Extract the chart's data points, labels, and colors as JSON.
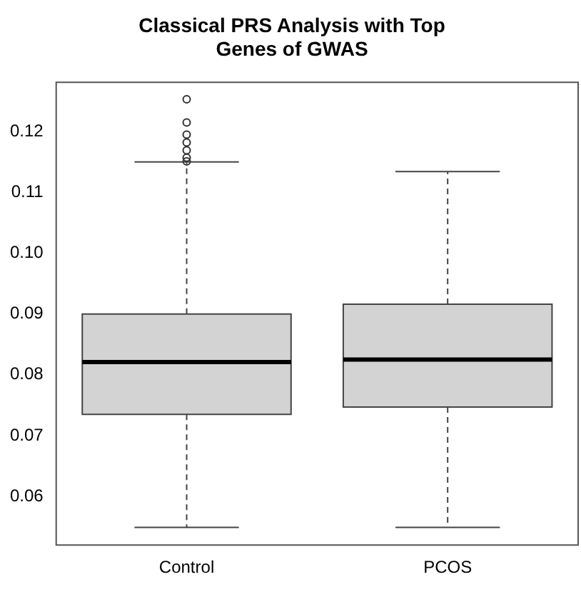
{
  "chart_data": {
    "type": "box",
    "title": "Classical PRS Analysis with Top Genes of GWAS",
    "categories": [
      "Control",
      "PCOS"
    ],
    "boxes": [
      {
        "low": 0.0549,
        "q1": 0.0735,
        "median": 0.0821,
        "q3": 0.09,
        "high": 0.115,
        "outliers": [
          0.1253,
          0.1215,
          0.1195,
          0.1182,
          0.1169,
          0.1157,
          0.1151
        ]
      },
      {
        "low": 0.0549,
        "q1": 0.0747,
        "median": 0.0825,
        "q3": 0.0916,
        "high": 0.1134
      }
    ],
    "color": "#d3d3d3",
    "ylim": [
      0.052,
      0.1281
    ],
    "yticks": [
      {
        "value": 0.06,
        "label": "0.06"
      },
      {
        "value": 0.07,
        "label": "0.07"
      },
      {
        "value": 0.08,
        "label": "0.08"
      },
      {
        "value": 0.09,
        "label": "0.09"
      },
      {
        "value": 0.1,
        "label": "0.10"
      },
      {
        "value": 0.11,
        "label": "0.11"
      },
      {
        "value": 0.12,
        "label": "0.12"
      }
    ],
    "grid": false,
    "legend": false
  }
}
